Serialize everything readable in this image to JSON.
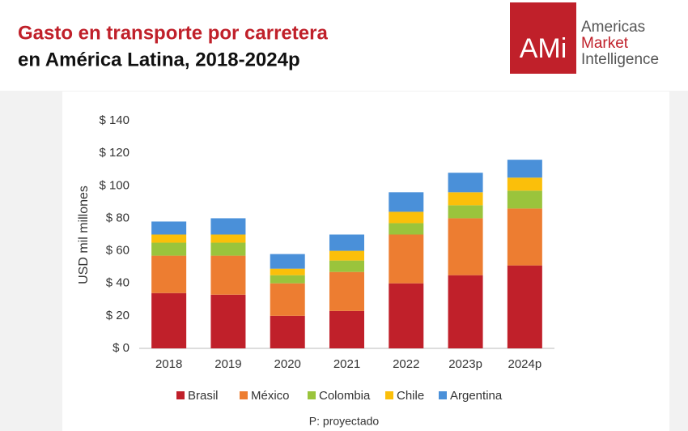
{
  "chart_data": {
    "type": "stacked_bar",
    "title": "Gasto en transporte por carretera",
    "subtitle": "en América Latina, 2018-2024p",
    "y_label": "USD mil millones",
    "note": "P: proyectado",
    "categories": [
      "2018",
      "2019",
      "2020",
      "2021",
      "2022",
      "2023p",
      "2024p"
    ],
    "series": [
      {
        "name": "Brasil",
        "color": "#c0202a",
        "values": [
          34,
          33,
          20,
          23,
          40,
          45,
          51
        ]
      },
      {
        "name": "México",
        "color": "#ed7d31",
        "values": [
          23,
          24,
          20,
          24,
          30,
          35,
          35
        ]
      },
      {
        "name": "Colombia",
        "color": "#9ac43c",
        "values": [
          8,
          8,
          5,
          7,
          7,
          8,
          11
        ]
      },
      {
        "name": "Chile",
        "color": "#fbbf0a",
        "values": [
          5,
          5,
          4,
          6,
          7,
          8,
          8
        ]
      },
      {
        "name": "Argentina",
        "color": "#4a90d9",
        "values": [
          8,
          10,
          9,
          10,
          12,
          12,
          11
        ]
      }
    ],
    "ylim": [
      0,
      140
    ],
    "yticks": [
      {
        "value": 0,
        "label": "$ 0"
      },
      {
        "value": 20,
        "label": "$ 20"
      },
      {
        "value": 40,
        "label": "$ 40"
      },
      {
        "value": 60,
        "label": "$ 60"
      },
      {
        "value": 80,
        "label": "$ 80"
      },
      {
        "value": 100,
        "label": "$ 100"
      },
      {
        "value": 120,
        "label": "$ 120"
      },
      {
        "value": 140,
        "label": "$ 140"
      }
    ],
    "legend": "bottom"
  },
  "logo": {
    "mark": "AMi",
    "lines": [
      "Americas",
      "Market",
      "Intelligence"
    ]
  }
}
